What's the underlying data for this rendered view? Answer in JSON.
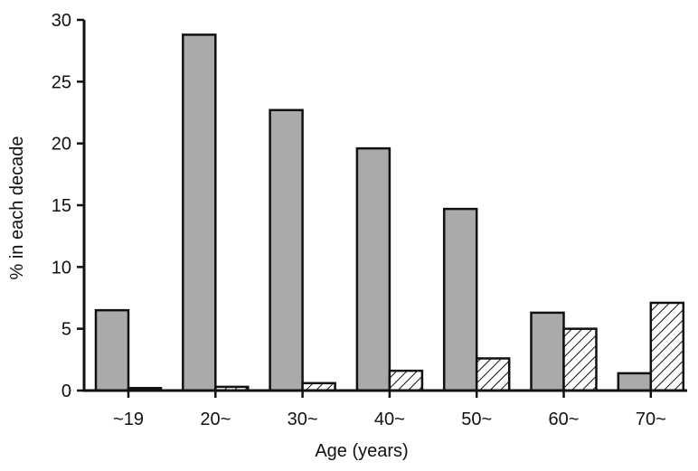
{
  "chart_data": {
    "type": "bar",
    "title": "",
    "xlabel": "Age (years)",
    "ylabel": "% in each decade",
    "ylim": [
      0,
      30
    ],
    "yticks": [
      "0",
      "5",
      "10",
      "15",
      "20",
      "25",
      "30"
    ],
    "categories": [
      "~19",
      "20~",
      "30~",
      "40~",
      "50~",
      "60~",
      "70~"
    ],
    "series": [
      {
        "fill": "solid-gray",
        "color": "#aaaaaa",
        "values": [
          6.5,
          28.8,
          22.7,
          19.6,
          14.7,
          6.3,
          1.4
        ]
      },
      {
        "fill": "hatched",
        "color": "#ffffff",
        "values": [
          0.2,
          0.3,
          0.6,
          1.6,
          2.6,
          5.0,
          7.1
        ]
      }
    ],
    "grid": false,
    "legend": "none"
  }
}
